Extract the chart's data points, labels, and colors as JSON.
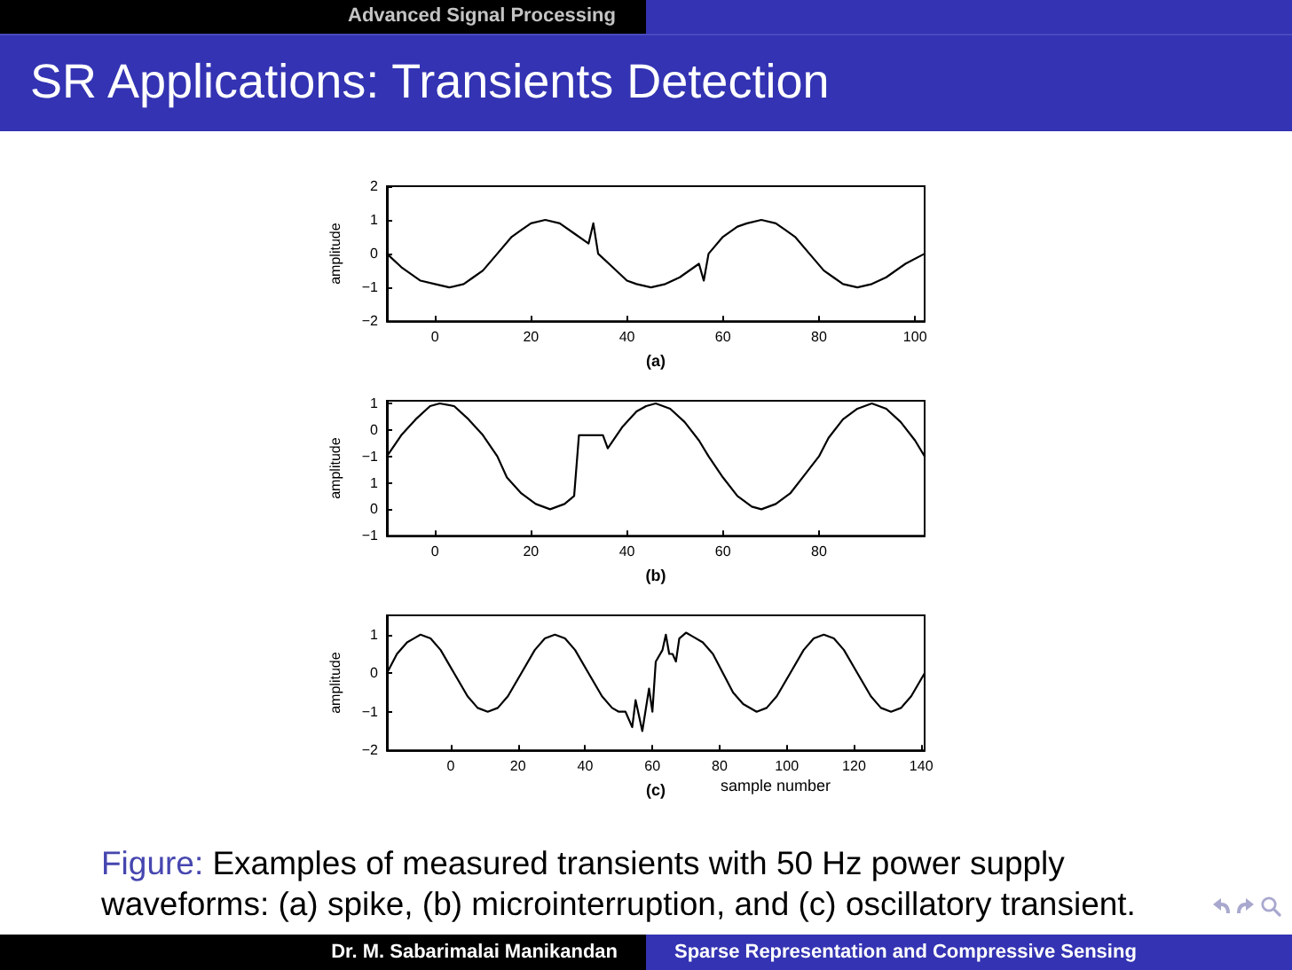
{
  "chart_data": [
    {
      "type": "line",
      "title": "SR Applications: Transients Detection",
      "xlabel": "(a)",
      "ylabel": "amplitude",
      "annotations": [
        "Advanced Signal Processing"
      ],
      "x": [
        -10,
        -7,
        -3,
        0,
        3,
        6,
        8,
        10,
        13,
        16,
        18,
        20,
        23,
        26,
        29,
        32,
        33,
        34,
        37,
        40,
        42,
        45,
        48,
        51,
        55,
        56,
        57,
        60,
        63,
        65,
        68,
        71,
        73,
        75,
        78,
        81,
        83,
        85,
        88,
        91,
        94,
        98,
        102
      ],
      "series": [
        {
          "color": "#000000",
          "values": [
            0,
            -0.4,
            -0.8,
            -0.9,
            -1,
            -0.9,
            -0.7,
            -0.5,
            0,
            0.5,
            0.7,
            0.9,
            1,
            0.9,
            0.6,
            0.3,
            0.9,
            0,
            -0.4,
            -0.8,
            -0.9,
            -1,
            -0.9,
            -0.7,
            -0.3,
            -0.8,
            0,
            0.5,
            0.8,
            0.9,
            1,
            0.9,
            0.7,
            0.5,
            0,
            -0.5,
            -0.7,
            -0.9,
            -1,
            -0.9,
            -0.7,
            -0.3,
            0
          ]
        }
      ],
      "xlim": [
        -10,
        102
      ],
      "ylim": [
        -2,
        2
      ],
      "xticks": [
        0,
        20,
        40,
        60,
        80,
        100
      ],
      "yticks": [
        -2,
        -1,
        0,
        1,
        2
      ]
    },
    {
      "type": "line",
      "xlabel": "(b)",
      "y2label": "amplitude",
      "x": [
        -10,
        -7,
        -4,
        -1,
        1,
        4,
        7,
        10,
        13,
        15,
        18,
        21,
        24,
        27,
        29,
        30,
        35,
        36,
        39,
        42,
        44,
        46,
        49,
        52,
        55,
        57,
        60,
        63,
        66,
        68,
        71,
        74,
        77,
        80,
        82,
        85,
        88,
        91,
        94,
        97,
        100,
        102
      ],
      "series": [
        {
          "color": "#000000",
          "values": [
            2,
            2.8,
            3.4,
            3.9,
            4,
            3.9,
            3.4,
            2.8,
            2,
            1.2,
            0.6,
            0.2,
            0,
            0.2,
            0.5,
            2.8,
            2.8,
            2.3,
            3.1,
            3.7,
            3.9,
            4,
            3.8,
            3.3,
            2.6,
            2,
            1.2,
            0.5,
            0.1,
            0,
            0.2,
            0.6,
            1.3,
            2,
            2.7,
            3.4,
            3.8,
            4,
            3.8,
            3.3,
            2.6,
            2
          ]
        }
      ],
      "xlim": [
        -10,
        102
      ],
      "ylim": [
        -1,
        4.1
      ],
      "xticks": [
        0,
        20,
        40,
        60,
        80
      ],
      "yticks": [
        -1,
        0,
        1
      ],
      "y2lim": [
        -4,
        1.1
      ],
      "y2ticks": [
        -1,
        0,
        1
      ]
    },
    {
      "type": "line",
      "xlabel": "(c)",
      "ylabel": "amplitude",
      "annotations": [
        "sample number",
        "Figure: Examples of measured transients with 50 Hz power supply waveforms: (a) spike, (b) microinterruption, and (c) oscillatory transient.",
        "Dr. M. Sabarimalai Manikandan",
        "Sparse Representation and Compressive Sensing"
      ],
      "x": [
        -19,
        -16,
        -13,
        -11,
        -9,
        -6,
        -3,
        1,
        5,
        8,
        11,
        14,
        17,
        21,
        25,
        28,
        31,
        34,
        37,
        41,
        45,
        48,
        50,
        52,
        54,
        55,
        57,
        59,
        60,
        61,
        63,
        64,
        65,
        66,
        67,
        68,
        70,
        72,
        75,
        78,
        81,
        84,
        87,
        91,
        94,
        97,
        101,
        105,
        108,
        111,
        114,
        117,
        121,
        125,
        128,
        131,
        134,
        137,
        141
      ],
      "series": [
        {
          "color": "#000000",
          "values": [
            0,
            0.5,
            0.8,
            0.9,
            1,
            0.9,
            0.6,
            0,
            -0.6,
            -0.9,
            -1,
            -0.9,
            -0.6,
            0,
            0.6,
            0.9,
            1,
            0.9,
            0.6,
            0,
            -0.6,
            -0.9,
            -1,
            -1,
            -1.4,
            -0.7,
            -1.5,
            -0.4,
            -1,
            0.3,
            0.6,
            1,
            0.5,
            0.5,
            0.3,
            0.9,
            1.05,
            0.95,
            0.8,
            0.5,
            0,
            -0.5,
            -0.8,
            -1,
            -0.9,
            -0.6,
            0,
            0.6,
            0.9,
            1,
            0.9,
            0.6,
            0,
            -0.6,
            -0.9,
            -1,
            -0.9,
            -0.6,
            0
          ]
        }
      ],
      "xlim": [
        -19,
        141
      ],
      "ylim": [
        -2,
        1.5
      ],
      "xticks": [
        0,
        20,
        40,
        60,
        80,
        100,
        120,
        140
      ],
      "yticks": [
        -2,
        -1,
        0,
        1
      ]
    }
  ]
}
